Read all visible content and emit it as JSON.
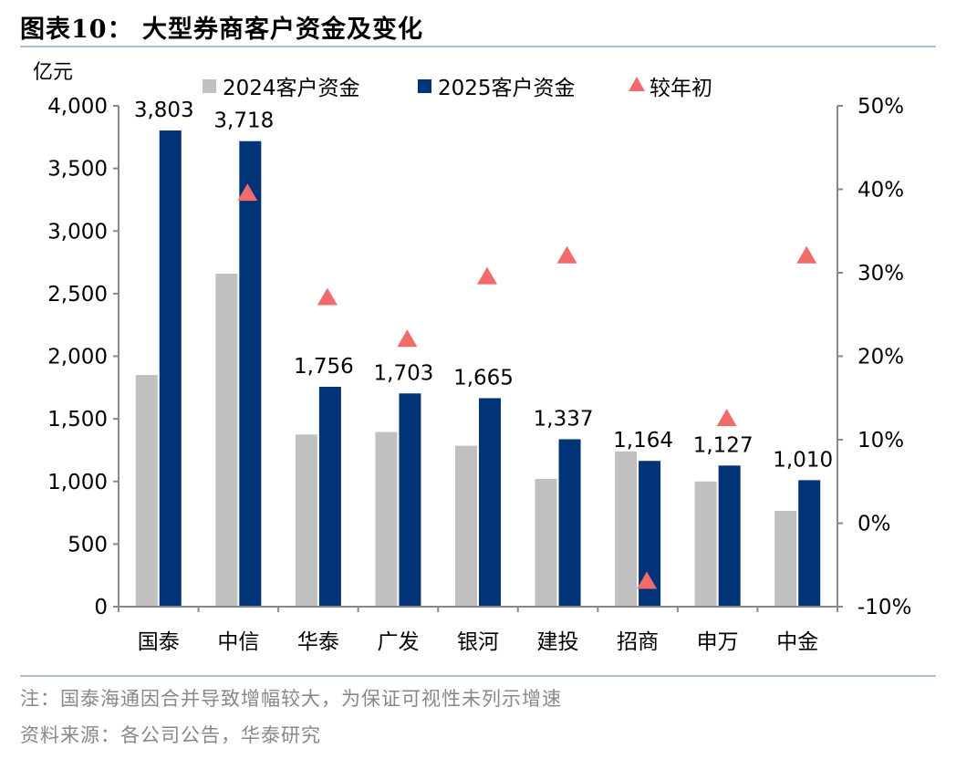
{
  "title": "图表10：    大型券商客户资金及变化",
  "note": "注：国泰海通因合并导致增幅较大，为保证可视性未列示增速",
  "source": "资料来源：各公司公告，华泰研究",
  "colors": {
    "s2024": "#c0c0c0",
    "s2025": "#003378",
    "change": "#f26b6b",
    "axis": "#888888"
  },
  "chart_data": {
    "type": "bar",
    "ylabel": "亿元",
    "ylim": [
      0,
      4000
    ],
    "yticks": [
      "0",
      "500",
      "1,000",
      "1,500",
      "2,000",
      "2,500",
      "3,000",
      "3,500",
      "4,000"
    ],
    "y2lim": [
      -0.1,
      0.5
    ],
    "y2ticks": [
      "-10%",
      "0%",
      "10%",
      "20%",
      "30%",
      "40%",
      "50%"
    ],
    "categories": [
      "国泰",
      "中信",
      "华泰",
      "广发",
      "银河",
      "建投",
      "招商",
      "申万",
      "中金"
    ],
    "series": [
      {
        "name": "2024客户资金",
        "values": [
          1850,
          2660,
          1375,
          1395,
          1285,
          1020,
          1240,
          1000,
          765
        ]
      },
      {
        "name": "2025客户资金",
        "values": [
          3803,
          3718,
          1756,
          1703,
          1665,
          1337,
          1164,
          1127,
          1010
        ],
        "labels": [
          "3,803",
          "3,718",
          "1,756",
          "1,703",
          "1,665",
          "1,337",
          "1,164",
          "1,127",
          "1,010"
        ]
      },
      {
        "name": "较年初",
        "axis": "right",
        "values": [
          null,
          0.395,
          0.27,
          0.22,
          0.295,
          0.32,
          -0.07,
          0.125,
          0.32
        ]
      }
    ],
    "legend": "top"
  }
}
